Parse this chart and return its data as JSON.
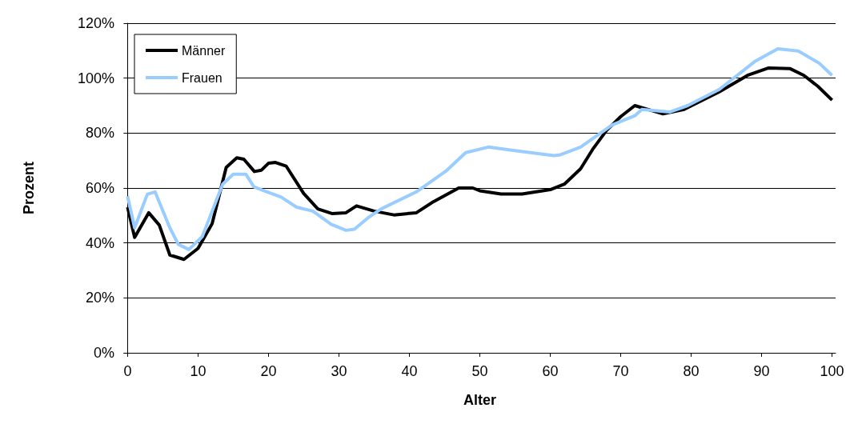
{
  "chart_data": {
    "type": "line",
    "xlabel": "Alter",
    "ylabel": "Prozent",
    "xlim": [
      -0.5,
      100.5
    ],
    "xticks": [
      0,
      10,
      20,
      30,
      40,
      50,
      60,
      70,
      80,
      90,
      100
    ],
    "ylim": [
      0,
      120
    ],
    "yticks": [
      {
        "value": 0,
        "label": "0%"
      },
      {
        "value": 20,
        "label": "20%"
      },
      {
        "value": 40,
        "label": "40%"
      },
      {
        "value": 60,
        "label": "60%"
      },
      {
        "value": 80,
        "label": "80%"
      },
      {
        "value": 100,
        "label": "100%"
      },
      {
        "value": 120,
        "label": "120%"
      }
    ],
    "grid": "y",
    "legend": "top left",
    "marker": "none",
    "line_style": "solid",
    "series": [
      {
        "name": "Männer",
        "color": "#000000",
        "x": [
          0,
          1,
          3,
          4.5,
          6,
          8,
          10,
          12,
          14,
          15.5,
          16.5,
          18,
          19,
          20,
          21,
          22.5,
          25,
          27,
          29,
          31,
          32.5,
          35,
          37.8,
          41,
          43.4,
          47,
          49,
          50,
          53,
          56,
          60,
          62,
          64.3,
          66,
          68,
          70,
          72,
          74,
          76,
          79,
          84,
          88,
          91,
          94,
          96,
          98,
          100
        ],
        "values": [
          53,
          42,
          51,
          46.5,
          35.6,
          34,
          38,
          47,
          67.5,
          71,
          70.5,
          66,
          66.5,
          69,
          69.3,
          68,
          58,
          52.4,
          50.7,
          51,
          53.5,
          51.6,
          50.2,
          51,
          55,
          60,
          60,
          59,
          57.8,
          57.8,
          59.4,
          61.4,
          67,
          74,
          81,
          86,
          90,
          88.5,
          87,
          88.6,
          95,
          101,
          103.7,
          103.5,
          101,
          97,
          92
        ]
      },
      {
        "name": "Frauen",
        "color": "#99ccff",
        "x": [
          0,
          1,
          2.8,
          3.9,
          6,
          7.2,
          8.7,
          10.6,
          13.5,
          15,
          16.8,
          17.9,
          19.5,
          21.8,
          24,
          26.3,
          28.9,
          31,
          32.2,
          34.2,
          36,
          41,
          45.3,
          48,
          51.2,
          55.4,
          60.5,
          61.3,
          64.3,
          68.8,
          72,
          73,
          77,
          79.5,
          84,
          89,
          92.3,
          95.2,
          98.2,
          100
        ],
        "values": [
          57,
          45.5,
          57.7,
          58.6,
          45.5,
          39.5,
          37.6,
          42.3,
          61.4,
          65,
          65,
          60.5,
          58.9,
          56.7,
          53,
          51.6,
          46.8,
          44.6,
          45,
          49.3,
          52.4,
          58.6,
          66.4,
          72.9,
          74.9,
          73.5,
          71.8,
          72,
          74.9,
          83,
          86.3,
          88.6,
          87.7,
          90,
          95.9,
          106,
          110.7,
          109.9,
          105.4,
          101
        ]
      }
    ]
  }
}
